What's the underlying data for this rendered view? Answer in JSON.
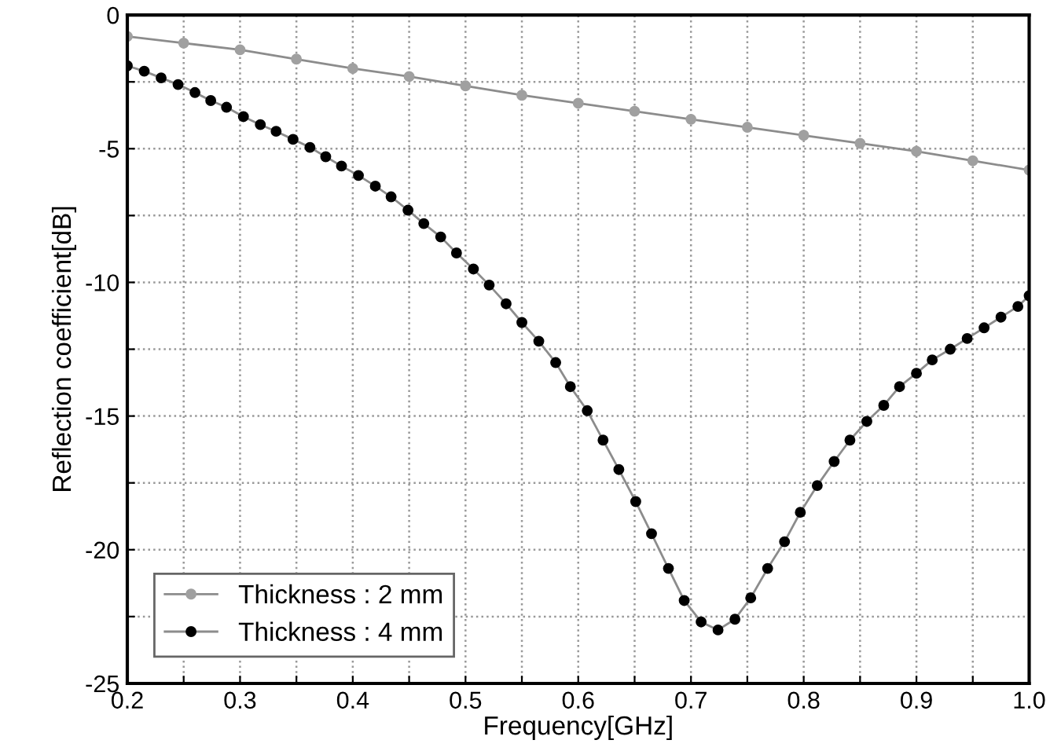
{
  "chart_data": {
    "type": "line",
    "xlabel": "Frequency[GHz]",
    "ylabel": "Reflection coefficient[dB]",
    "xlim": [
      0.2,
      1.0
    ],
    "ylim": [
      -25,
      0
    ],
    "xticks": [
      0.2,
      {
        "value": 0.25,
        "label": null
      },
      0.3,
      {
        "value": 0.35,
        "label": null
      },
      0.4,
      {
        "value": 0.45,
        "label": null
      },
      0.5,
      {
        "value": 0.55,
        "label": null
      },
      0.6,
      {
        "value": 0.65,
        "label": null
      },
      0.7,
      {
        "value": 0.75,
        "label": null
      },
      0.8,
      {
        "value": 0.85,
        "label": null
      },
      0.9,
      {
        "value": 0.95,
        "label": null
      },
      {
        "value": 1.0,
        "label": "1.0"
      }
    ],
    "yticks": [
      -25,
      {
        "value": -22.5,
        "label": null
      },
      -20,
      {
        "value": -17.5,
        "label": null
      },
      -15,
      {
        "value": -12.5,
        "label": null
      },
      -10,
      {
        "value": -7.5,
        "label": null
      },
      -5,
      {
        "value": -2.5,
        "label": null
      },
      0
    ],
    "grid": true,
    "legend": "bottom left",
    "marker": "circle",
    "line_style": "solid",
    "series": [
      {
        "name": "Thickness : 2 mm",
        "color": "#a0a0a0",
        "x": [
          0.2,
          0.25,
          0.3,
          0.35,
          0.4,
          0.45,
          0.5,
          0.55,
          0.6,
          0.65,
          0.7,
          0.75,
          0.8,
          0.85,
          0.9,
          0.95,
          1.0
        ],
        "values": [
          -0.8,
          -1.05,
          -1.3,
          -1.65,
          -2.0,
          -2.3,
          -2.65,
          -3.0,
          -3.3,
          -3.6,
          -3.9,
          -4.2,
          -4.5,
          -4.8,
          -5.1,
          -5.45,
          -5.8
        ]
      },
      {
        "name": "Thickness : 4 mm",
        "color": "#000000",
        "x": [
          0.2,
          0.215,
          0.23,
          0.245,
          0.26,
          0.274,
          0.288,
          0.303,
          0.318,
          0.332,
          0.347,
          0.362,
          0.376,
          0.39,
          0.405,
          0.42,
          0.434,
          0.449,
          0.463,
          0.478,
          0.492,
          0.507,
          0.521,
          0.536,
          0.55,
          0.565,
          0.58,
          0.593,
          0.608,
          0.622,
          0.636,
          0.651,
          0.665,
          0.68,
          0.694,
          0.709,
          0.724,
          0.739,
          0.753,
          0.768,
          0.783,
          0.797,
          0.812,
          0.827,
          0.841,
          0.856,
          0.871,
          0.885,
          0.9,
          0.914,
          0.93,
          0.945,
          0.96,
          0.975,
          0.99,
          1.0
        ],
        "values": [
          -1.9,
          -2.1,
          -2.35,
          -2.6,
          -2.9,
          -3.2,
          -3.45,
          -3.8,
          -4.1,
          -4.35,
          -4.65,
          -4.95,
          -5.3,
          -5.65,
          -6.0,
          -6.4,
          -6.8,
          -7.3,
          -7.8,
          -8.3,
          -8.9,
          -9.5,
          -10.1,
          -10.8,
          -11.5,
          -12.2,
          -13.0,
          -13.9,
          -14.8,
          -15.9,
          -17.0,
          -18.2,
          -19.4,
          -20.7,
          -21.9,
          -22.7,
          -23.0,
          -22.6,
          -21.8,
          -20.7,
          -19.7,
          -18.6,
          -17.6,
          -16.7,
          -15.9,
          -15.2,
          -14.6,
          -13.9,
          -13.4,
          -12.9,
          -12.5,
          -12.1,
          -11.7,
          -11.3,
          -10.9,
          -10.5
        ]
      }
    ]
  }
}
